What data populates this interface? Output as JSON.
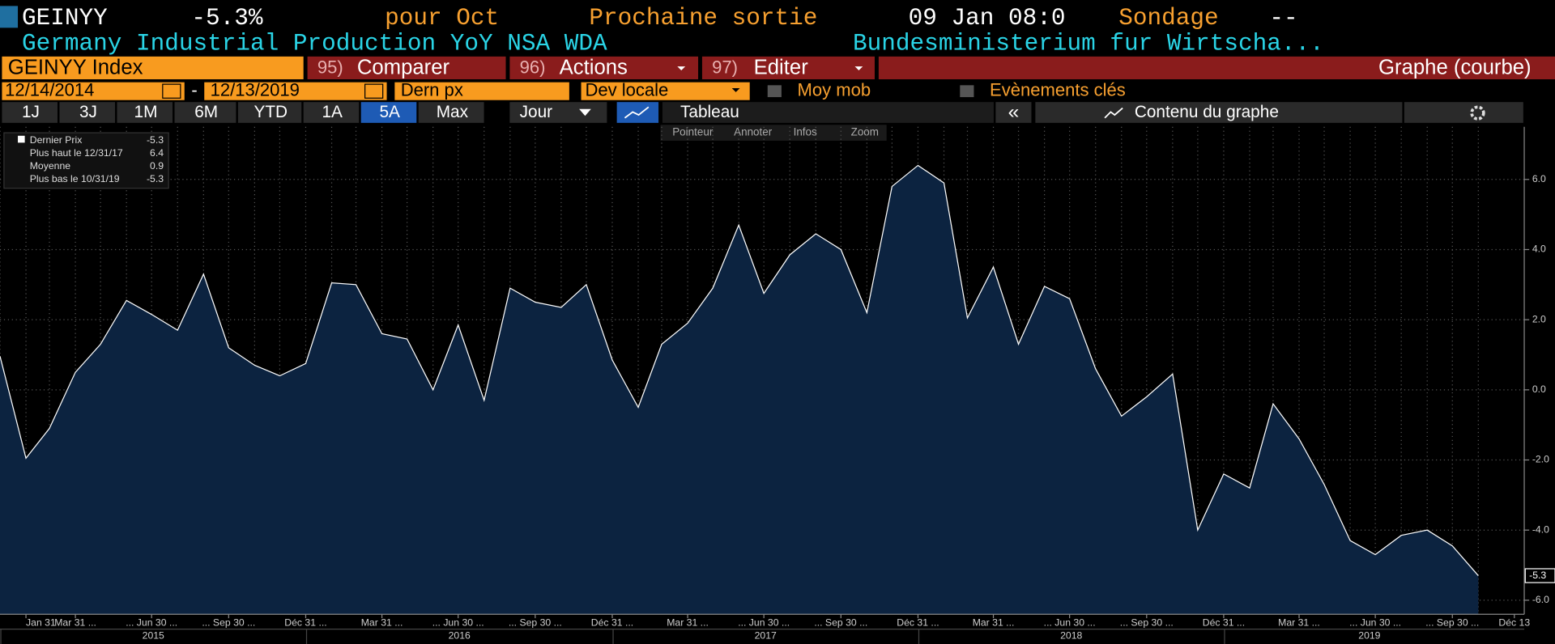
{
  "header": {
    "ticker": "GEINYY",
    "change": "-5.3%",
    "period": "pour Oct",
    "next_label": "Prochaine sortie",
    "next_value": "09 Jan 08:0",
    "survey_label": "Sondage",
    "survey_value": "--",
    "description": "Germany Industrial Production YoY NSA WDA",
    "source": "Bundesministerium fur Wirtscha..."
  },
  "toolbar": {
    "security": "GEINYY Index",
    "tabs": [
      {
        "num": "95)",
        "label": "Comparer"
      },
      {
        "num": "96)",
        "label": "Actions"
      },
      {
        "num": "97)",
        "label": "Editer"
      }
    ],
    "view": "Graphe (courbe)",
    "start_date": "12/14/2014",
    "dash": "-",
    "end_date": "12/13/2019",
    "field": "Dern px",
    "currency": "Dev locale",
    "moving_avg": "Moy mob",
    "events": "Evènements clés",
    "periods": [
      "1J",
      "3J",
      "1M",
      "6M",
      "YTD",
      "1A",
      "5A",
      "Max"
    ],
    "frequency": "Jour",
    "table": "Tableau",
    "contents": "Contenu du graphe",
    "tools": [
      "Pointeur",
      "Annoter",
      "Infos",
      "Zoom"
    ]
  },
  "chart_data": {
    "type": "area",
    "color": "#ffffff",
    "fill": "#0c2340",
    "stats": [
      {
        "label": "Dernier Prix",
        "value": "-5.3"
      },
      {
        "label": "Plus haut le 12/31/17",
        "value": "6.4"
      },
      {
        "label": "Moyenne",
        "value": "0.9"
      },
      {
        "label": "Plus bas le 10/31/19",
        "value": "-5.3"
      }
    ],
    "x": [
      "2014-12-31",
      "2015-01-31",
      "2015-02-28",
      "2015-03-31",
      "2015-04-30",
      "2015-05-31",
      "2015-06-30",
      "2015-07-31",
      "2015-08-31",
      "2015-09-30",
      "2015-10-31",
      "2015-11-30",
      "2015-12-31",
      "2016-01-31",
      "2016-02-29",
      "2016-03-31",
      "2016-04-30",
      "2016-05-31",
      "2016-06-30",
      "2016-07-31",
      "2016-08-31",
      "2016-09-30",
      "2016-10-31",
      "2016-11-30",
      "2016-12-31",
      "2017-01-31",
      "2017-02-28",
      "2017-03-31",
      "2017-04-30",
      "2017-05-31",
      "2017-06-30",
      "2017-07-31",
      "2017-08-31",
      "2017-09-30",
      "2017-10-31",
      "2017-11-30",
      "2017-12-31",
      "2018-01-31",
      "2018-02-28",
      "2018-03-31",
      "2018-04-30",
      "2018-05-31",
      "2018-06-30",
      "2018-07-31",
      "2018-08-31",
      "2018-09-30",
      "2018-10-31",
      "2018-11-30",
      "2018-12-31",
      "2019-01-31",
      "2019-02-28",
      "2019-03-31",
      "2019-04-30",
      "2019-05-31",
      "2019-06-30",
      "2019-07-31",
      "2019-08-31",
      "2019-09-30",
      "2019-10-31"
    ],
    "values": [
      0.96,
      -1.95,
      -1.1,
      0.5,
      1.3,
      2.55,
      2.15,
      1.7,
      3.3,
      1.2,
      0.7,
      0.4,
      0.75,
      3.05,
      3.0,
      1.6,
      1.45,
      0.0,
      1.85,
      -0.3,
      2.9,
      2.5,
      2.35,
      3.0,
      0.85,
      -0.5,
      1.3,
      1.9,
      2.9,
      4.7,
      2.75,
      3.85,
      4.45,
      4.0,
      2.2,
      5.8,
      6.4,
      5.9,
      2.05,
      3.5,
      1.3,
      2.95,
      2.6,
      0.6,
      -0.75,
      -0.2,
      0.45,
      -4.0,
      -2.4,
      -2.8,
      -0.4,
      -1.4,
      -2.7,
      -4.3,
      -4.7,
      -4.15,
      -4.0,
      -4.45,
      -5.3
    ],
    "xlim": [
      "2014-12-31",
      "2019-12-13"
    ],
    "xticks": [
      {
        "value": "2015-01-31",
        "label": "Jan 31"
      },
      {
        "value": "2015-03-31",
        "label": "Mar 31 ..."
      },
      {
        "value": "2015-06-30",
        "label": "... Jun 30 ..."
      },
      {
        "value": "2015-09-30",
        "label": "... Sep 30 ..."
      },
      {
        "value": "2015-12-31",
        "label": "Déc 31 ..."
      },
      {
        "value": "2016-03-31",
        "label": "Mar 31 ..."
      },
      {
        "value": "2016-06-30",
        "label": "... Jun 30 ..."
      },
      {
        "value": "2016-09-30",
        "label": "... Sep 30 ..."
      },
      {
        "value": "2016-12-31",
        "label": "Déc 31 ..."
      },
      {
        "value": "2017-03-31",
        "label": "Mar 31 ..."
      },
      {
        "value": "2017-06-30",
        "label": "... Jun 30 ..."
      },
      {
        "value": "2017-09-30",
        "label": "... Sep 30 ..."
      },
      {
        "value": "2017-12-31",
        "label": "Déc 31 ..."
      },
      {
        "value": "2018-03-31",
        "label": "Mar 31 ..."
      },
      {
        "value": "2018-06-30",
        "label": "... Jun 30 ..."
      },
      {
        "value": "2018-09-30",
        "label": "... Sep 30 ..."
      },
      {
        "value": "2018-12-31",
        "label": "Déc 31 ..."
      },
      {
        "value": "2019-03-31",
        "label": "Mar 31 ..."
      },
      {
        "value": "2019-06-30",
        "label": "... Jun 30 ..."
      },
      {
        "value": "2019-09-30",
        "label": "... Sep 30 ..."
      },
      {
        "value": "2019-12-13",
        "label": "Déc 13"
      }
    ],
    "years": [
      "2015",
      "2016",
      "2017",
      "2018",
      "2019"
    ],
    "ylim": [
      -6.4,
      7.5
    ],
    "yticks": [
      {
        "value": 6,
        "label": "6.0"
      },
      {
        "value": 4,
        "label": "4.0"
      },
      {
        "value": 2,
        "label": "2.0"
      },
      {
        "value": 0,
        "label": "0.0"
      },
      {
        "value": -2,
        "label": "-2.0"
      },
      {
        "value": -4,
        "label": "-4.0"
      },
      {
        "value": -6,
        "label": "-6.0"
      }
    ],
    "grid": true
  }
}
